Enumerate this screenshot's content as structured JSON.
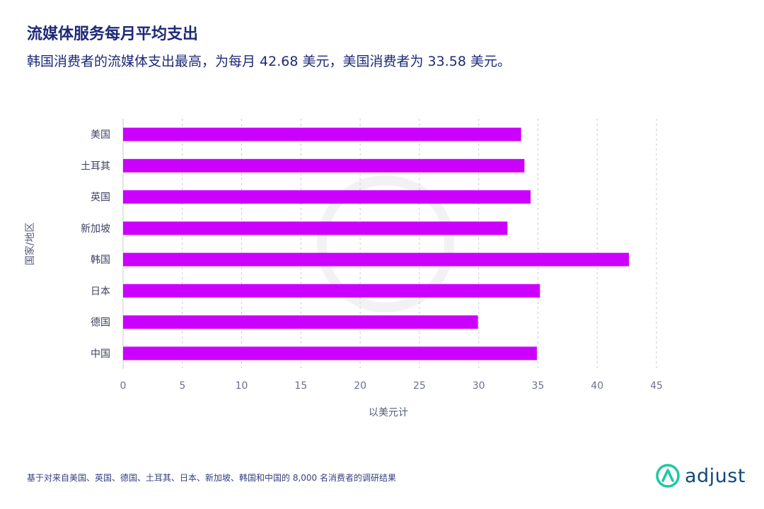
{
  "header": {
    "title": "流媒体服务每月平均支出",
    "subtitle": "韩国消费者的流媒体支出最高，为每月 42.68 美元，美国消费者为 33.58 美元。"
  },
  "chart_data": {
    "type": "bar",
    "orientation": "horizontal",
    "categories": [
      "美国",
      "土耳其",
      "英国",
      "新加坡",
      "韩国",
      "日本",
      "德国",
      "中国"
    ],
    "values": [
      33.58,
      33.86,
      34.38,
      32.43,
      42.68,
      35.17,
      29.94,
      34.91
    ],
    "xlabel": "以美元计",
    "ylabel": "国家/地区",
    "xlim": [
      0,
      45
    ],
    "xticks": [
      0,
      5,
      10,
      15,
      20,
      25,
      30,
      35,
      40,
      45
    ],
    "grid": "vertical-dashed",
    "bar_color": "#cc00ff"
  },
  "footer": {
    "note": "基于对来自美国、英国、德国、土耳其、日本、新加坡、韩国和中国的 8,000 名消费者的调研结果",
    "brand": "adjust",
    "brand_icon": "adjust-logo-icon"
  }
}
